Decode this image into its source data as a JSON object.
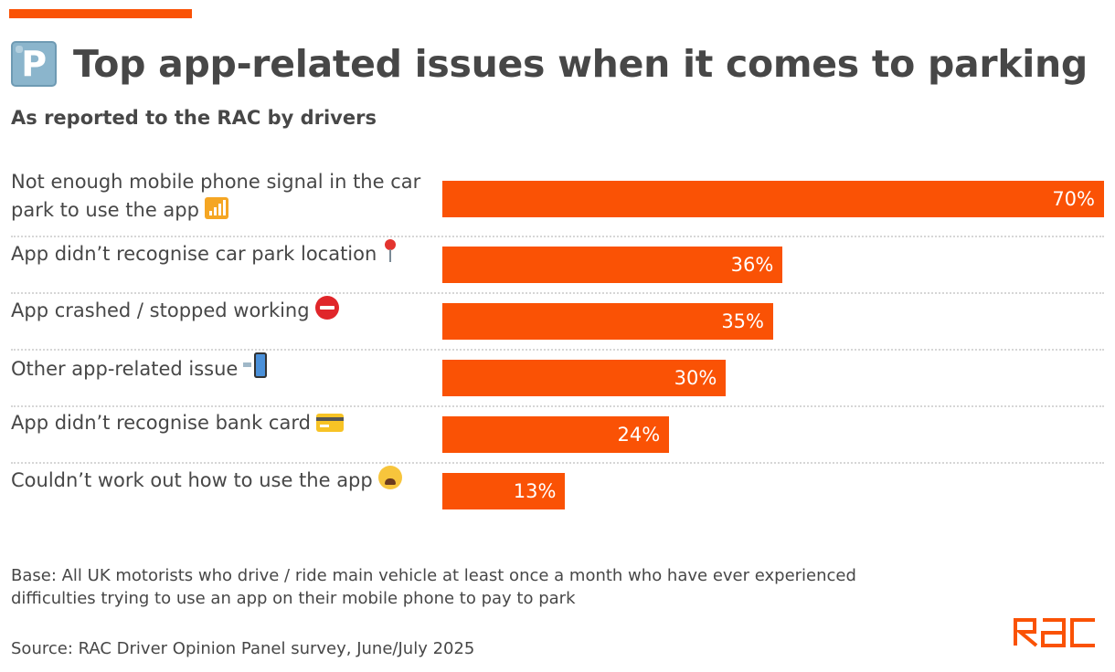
{
  "header": {
    "icon": "parking-icon",
    "icon_glyph": "P",
    "title": "Top app-related issues when it comes to parking",
    "subtitle": "As reported to the RAC by drivers"
  },
  "colors": {
    "accent": "#fa5205",
    "text": "#474747",
    "divider": "#d6d6d6"
  },
  "chart_data": {
    "type": "bar",
    "orientation": "horizontal",
    "title": "Top app-related issues when it comes to parking",
    "subtitle": "As reported to the RAC by drivers",
    "xlabel": "",
    "ylabel": "",
    "unit": "%",
    "xlim": [
      0,
      70
    ],
    "grid": false,
    "legend": "none",
    "categories": [
      "Not enough mobile phone signal in the car park to use the app",
      "App didn’t recognise car park location",
      "App crashed / stopped working",
      "Other app-related issue",
      "App didn’t recognise bank card",
      "Couldn’t work out how to use the app"
    ],
    "category_icons": [
      "signal-bars-icon",
      "location-pin-icon",
      "no-entry-icon",
      "mobile-phone-arrow-icon",
      "credit-card-icon",
      "weary-face-icon"
    ],
    "values": [
      70,
      36,
      35,
      30,
      24,
      13
    ],
    "value_labels": [
      "70%",
      "36%",
      "35%",
      "30%",
      "24%",
      "13%"
    ]
  },
  "footer": {
    "base_note": "Base: All UK motorists who drive / ride main vehicle at least once a month who have ever experienced difficulties trying to use an app on their mobile phone to pay to park",
    "source": "Source: RAC Driver Opinion Panel survey, June/July 2025",
    "logo": "RAC"
  }
}
